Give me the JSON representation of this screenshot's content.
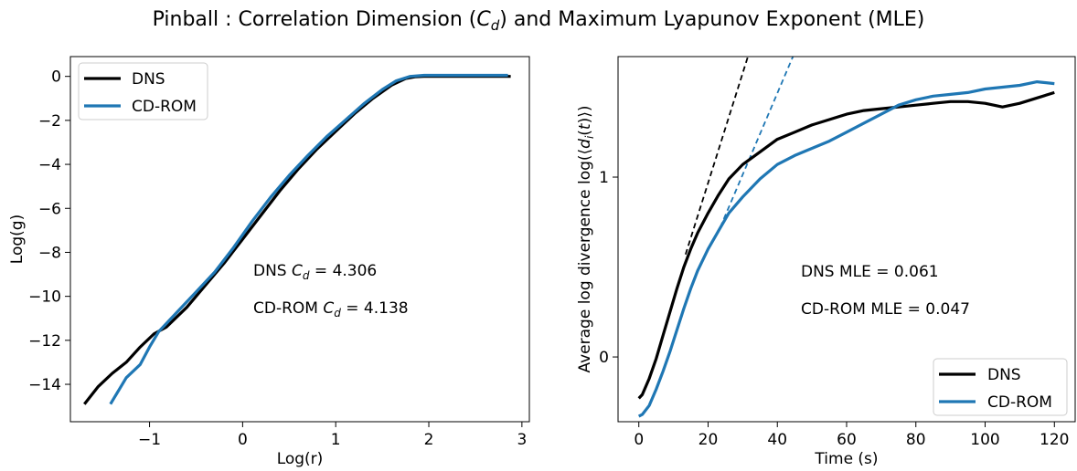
{
  "figure": {
    "title_main": "Pinball : Correlation Dimension (",
    "title_sym": "C",
    "title_sub": "d",
    "title_rest": ") and Maximum Lyapunov Exponent (MLE)"
  },
  "colors": {
    "DNS": "#000000",
    "CD-ROM": "#1f77b4"
  },
  "chart_data": [
    {
      "type": "line",
      "xlabel": "Log(r)",
      "ylabel": "Log(g)",
      "xlim": [
        -1.85,
        3.08
      ],
      "ylim": [
        -15.7,
        0.9
      ],
      "xticks": [
        -1,
        0,
        1,
        2,
        3
      ],
      "xtick_labels": [
        "−1",
        "0",
        "1",
        "2",
        "3"
      ],
      "yticks": [
        0,
        -2,
        -4,
        -6,
        -8,
        -10,
        -12,
        -14
      ],
      "ytick_labels": [
        "0",
        "−2",
        "−4",
        "−6",
        "−8",
        "−10",
        "−12",
        "−14"
      ],
      "legend_position": "top-left",
      "grid": false,
      "series": [
        {
          "name": "DNS",
          "color": "#000000",
          "width": 3.2,
          "x": [
            -1.7,
            -1.55,
            -1.4,
            -1.25,
            -1.1,
            -0.95,
            -0.82,
            -0.6,
            -0.4,
            -0.2,
            0,
            0.2,
            0.4,
            0.6,
            0.8,
            1,
            1.2,
            1.4,
            1.6,
            1.75,
            1.85,
            1.95,
            2.05,
            2.2,
            2.5,
            2.7,
            2.88
          ],
          "y": [
            -14.9,
            -14.1,
            -13.5,
            -13.0,
            -12.3,
            -11.7,
            -11.4,
            -10.5,
            -9.5,
            -8.5,
            -7.4,
            -6.3,
            -5.2,
            -4.2,
            -3.3,
            -2.5,
            -1.7,
            -1.0,
            -0.4,
            -0.1,
            -0.02,
            0,
            0,
            0,
            0,
            0,
            0
          ]
        },
        {
          "name": "CD-ROM",
          "color": "#1f77b4",
          "width": 3.2,
          "x": [
            -1.42,
            -1.25,
            -1.1,
            -1.0,
            -0.9,
            -0.7,
            -0.5,
            -0.3,
            -0.1,
            0.1,
            0.3,
            0.5,
            0.7,
            0.9,
            1.1,
            1.3,
            1.5,
            1.65,
            1.8,
            1.95,
            2.1,
            2.3,
            2.6,
            2.85
          ],
          "y": [
            -14.9,
            -13.7,
            -13.1,
            -12.3,
            -11.6,
            -10.7,
            -9.8,
            -8.9,
            -7.8,
            -6.6,
            -5.5,
            -4.5,
            -3.6,
            -2.75,
            -2.0,
            -1.25,
            -0.6,
            -0.2,
            0,
            0.05,
            0.05,
            0.05,
            0.05,
            0.05
          ]
        }
      ],
      "annotations": [
        {
          "label": "DNS ",
          "sym": "C",
          "sub": "d",
          "value": " = 4.306"
        },
        {
          "label": "CD-ROM ",
          "sym": "C",
          "sub": "d",
          "value": " = 4.138"
        }
      ]
    },
    {
      "type": "line",
      "xlabel": "Time (s)",
      "ylabel_pre": "Average log divergence log(⟨",
      "ylabel_sym": "d",
      "ylabel_sub": "i",
      "ylabel_mid": "(",
      "ylabel_t": "t",
      "ylabel_post": ")⟩)",
      "xlim": [
        -6,
        126
      ],
      "ylim": [
        -0.36,
        1.67
      ],
      "xticks": [
        0,
        20,
        40,
        60,
        80,
        100,
        120
      ],
      "xtick_labels": [
        "0",
        "20",
        "40",
        "60",
        "80",
        "100",
        "120"
      ],
      "yticks": [
        0,
        1
      ],
      "ytick_labels": [
        "0",
        "1"
      ],
      "legend_position": "bottom-right",
      "grid": false,
      "series": [
        {
          "name": "DNS",
          "color": "#000000",
          "width": 3.2,
          "x": [
            0,
            1,
            3,
            5,
            7,
            9,
            11,
            13,
            15,
            17,
            20,
            23,
            26,
            30,
            35,
            40,
            45,
            50,
            55,
            60,
            65,
            70,
            75,
            80,
            85,
            90,
            95,
            100,
            105,
            110,
            115,
            120
          ],
          "y": [
            -0.23,
            -0.21,
            -0.12,
            -0.01,
            0.12,
            0.25,
            0.38,
            0.5,
            0.6,
            0.69,
            0.8,
            0.9,
            0.99,
            1.07,
            1.14,
            1.21,
            1.25,
            1.29,
            1.32,
            1.35,
            1.37,
            1.38,
            1.39,
            1.4,
            1.41,
            1.42,
            1.42,
            1.41,
            1.39,
            1.41,
            1.44,
            1.47
          ]
        },
        {
          "name": "CD-ROM",
          "color": "#1f77b4",
          "width": 3.2,
          "x": [
            0,
            1,
            3,
            5,
            7,
            9,
            11,
            13,
            15,
            17,
            20,
            23,
            26,
            30,
            35,
            40,
            45,
            50,
            55,
            60,
            65,
            70,
            75,
            80,
            85,
            90,
            95,
            100,
            105,
            110,
            115,
            120
          ],
          "y": [
            -0.33,
            -0.32,
            -0.27,
            -0.18,
            -0.08,
            0.03,
            0.15,
            0.27,
            0.38,
            0.48,
            0.6,
            0.7,
            0.8,
            0.89,
            0.99,
            1.07,
            1.12,
            1.16,
            1.2,
            1.25,
            1.3,
            1.35,
            1.4,
            1.43,
            1.45,
            1.46,
            1.47,
            1.49,
            1.5,
            1.51,
            1.53,
            1.52
          ]
        }
      ],
      "fit_lines": [
        {
          "name": "DNS",
          "color": "#000000",
          "x": [
            13.5,
            31.5
          ],
          "y": [
            0.57,
            1.67
          ]
        },
        {
          "name": "CD-ROM",
          "color": "#1f77b4",
          "x": [
            23.5,
            44.5
          ],
          "y": [
            0.72,
            1.67
          ]
        }
      ],
      "annotations": [
        {
          "label": "DNS MLE = 0.061"
        },
        {
          "label": "CD-ROM MLE = 0.047"
        }
      ]
    }
  ]
}
